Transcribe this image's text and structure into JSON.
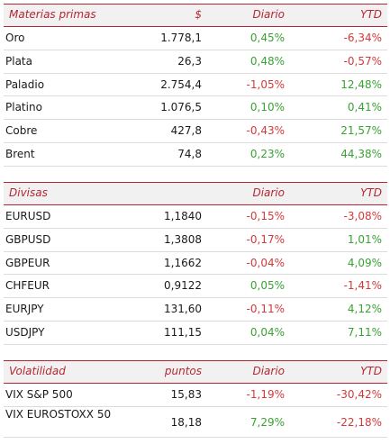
{
  "commodities": {
    "header": {
      "title": "Materias primas",
      "col1": "$",
      "col2": "Diario",
      "col3": "YTD"
    },
    "rows": [
      {
        "name": "Oro",
        "price": "1.778,1",
        "daily": "0,45%",
        "ytd": "-6,34%"
      },
      {
        "name": "Plata",
        "price": "26,3",
        "daily": "0,48%",
        "ytd": "-0,57%"
      },
      {
        "name": "Paladio",
        "price": "2.754,4",
        "daily": "-1,05%",
        "ytd": "12,48%"
      },
      {
        "name": "Platino",
        "price": "1.076,5",
        "daily": "0,10%",
        "ytd": "0,41%"
      },
      {
        "name": "Cobre",
        "price": "427,8",
        "daily": "-0,43%",
        "ytd": "21,57%"
      },
      {
        "name": "Brent",
        "price": "74,8",
        "daily": "0,23%",
        "ytd": "44,38%"
      }
    ]
  },
  "currencies": {
    "header": {
      "title": "Divisas",
      "col1": "",
      "col2": "Diario",
      "col3": "YTD"
    },
    "rows": [
      {
        "name": "EURUSD",
        "price": "1,1840",
        "daily": "-0,15%",
        "ytd": "-3,08%"
      },
      {
        "name": "GBPUSD",
        "price": "1,3808",
        "daily": "-0,17%",
        "ytd": "1,01%"
      },
      {
        "name": "GBPEUR",
        "price": "1,1662",
        "daily": "-0,04%",
        "ytd": "4,09%"
      },
      {
        "name": "CHFEUR",
        "price": "0,9122",
        "daily": "0,05%",
        "ytd": "-1,41%"
      },
      {
        "name": "EURJPY",
        "price": "131,60",
        "daily": "-0,11%",
        "ytd": "4,12%"
      },
      {
        "name": "USDJPY",
        "price": "111,15",
        "daily": "0,04%",
        "ytd": "7,11%"
      }
    ]
  },
  "volatility": {
    "header": {
      "title": "Volatilidad",
      "col1": "puntos",
      "col2": "Diario",
      "col3": "YTD"
    },
    "rows": [
      {
        "name": "VIX S&P 500",
        "price": "15,83",
        "daily": "-1,19%",
        "ytd": "-30,42%"
      },
      {
        "name": "VIX EUROSTOXX 50",
        "price": "18,18",
        "daily": "7,29%",
        "ytd": "-22,18%"
      }
    ]
  },
  "colors": {
    "accent": "#b52632",
    "header_bg": "#f1f1f1",
    "positive": "#3aa134",
    "negative": "#d23a3a"
  }
}
